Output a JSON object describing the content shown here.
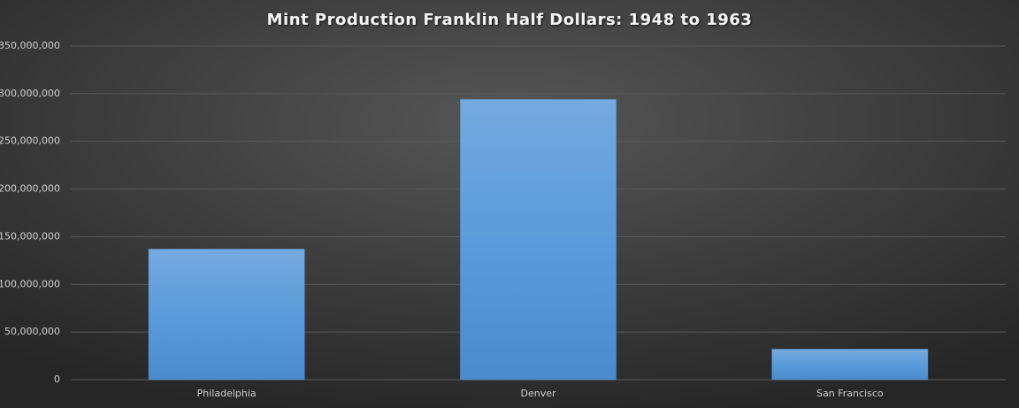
{
  "chart_data": {
    "type": "bar",
    "title": "Mint Production Franklin Half Dollars: 1948 to 1963",
    "categories": [
      "Philadelphia",
      "Denver",
      "San Francisco"
    ],
    "values": [
      137000000,
      294000000,
      32000000
    ],
    "color": "#5b9bd5",
    "ylim": [
      0,
      350000000
    ],
    "yticks": [
      0,
      {
        "value": 50000000,
        "label": "50,000,000"
      },
      {
        "value": 100000000,
        "label": "100,000,000"
      },
      {
        "value": 150000000,
        "label": "150,000,000"
      },
      {
        "value": 200000000,
        "label": "200,000,000"
      },
      {
        "value": 250000000,
        "label": "250,000,000"
      },
      {
        "value": 300000000,
        "label": "300,000,000"
      },
      {
        "value": 350000000,
        "label": "350,000,000"
      }
    ],
    "grid": true
  }
}
